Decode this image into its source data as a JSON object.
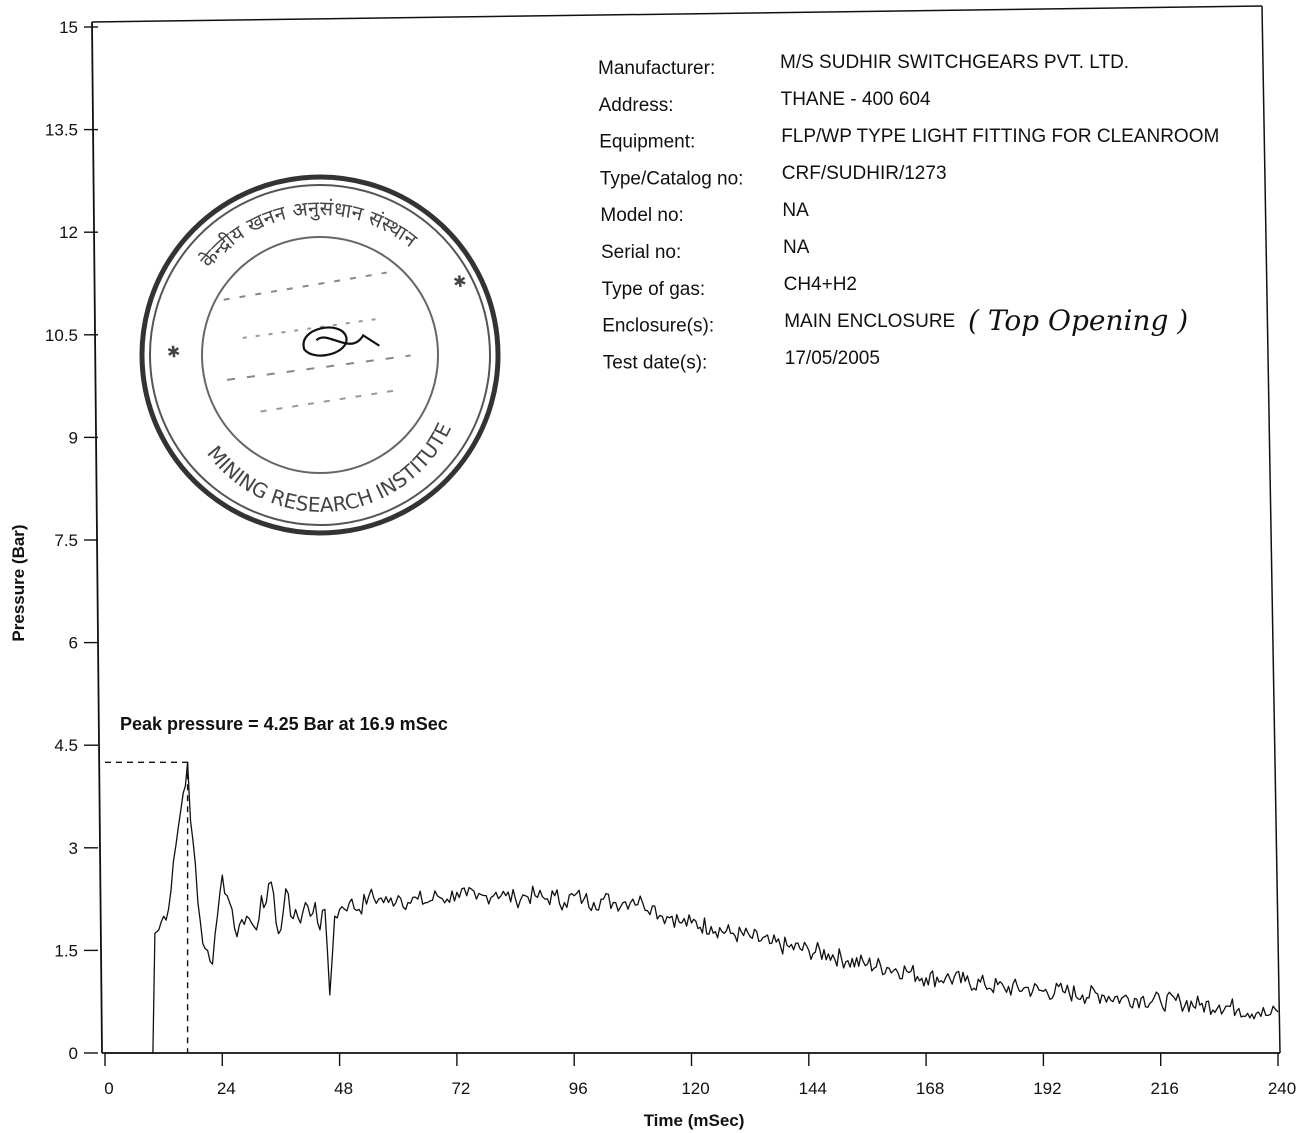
{
  "chart_data": {
    "type": "line",
    "xlabel": "Time (mSec)",
    "ylabel": "Pressure (Bar)",
    "xlim": [
      0,
      240
    ],
    "ylim": [
      0,
      15
    ],
    "x_ticks": [
      0,
      24,
      48,
      72,
      96,
      120,
      144,
      168,
      192,
      216,
      240
    ],
    "y_ticks": [
      0,
      1.5,
      3,
      4.5,
      6,
      7.5,
      9,
      10.5,
      12,
      13.5,
      15
    ],
    "grid": false,
    "series": [
      {
        "x": [
          0,
          9,
          9.8,
          10.2,
          11,
          12,
          13,
          14,
          15,
          16,
          16.9,
          17.5,
          18,
          19,
          20,
          21,
          22,
          23,
          24,
          25,
          26,
          27,
          28,
          29,
          30,
          31,
          32,
          33,
          34,
          35,
          36,
          37,
          38,
          39,
          40,
          41,
          42,
          43,
          44,
          45,
          45.5,
          46,
          47,
          48,
          50,
          52,
          54,
          56,
          58,
          60,
          62,
          64,
          66,
          68,
          70,
          72,
          74,
          76,
          78,
          80,
          82,
          84,
          86,
          88,
          90,
          92,
          94,
          96,
          98,
          100,
          102,
          104,
          106,
          108,
          110,
          112,
          114,
          116,
          118,
          120,
          124,
          128,
          132,
          136,
          140,
          144,
          148,
          152,
          156,
          160,
          164,
          168,
          172,
          176,
          180,
          184,
          188,
          192,
          196,
          200,
          204,
          208,
          212,
          216,
          220,
          224,
          228,
          232,
          236,
          238,
          240
        ],
        "values": [
          0,
          0,
          0,
          1.75,
          1.8,
          2.0,
          2.1,
          2.8,
          3.3,
          3.8,
          4.25,
          3.4,
          3.1,
          2.2,
          1.6,
          1.5,
          1.3,
          2.0,
          2.6,
          2.3,
          2.1,
          1.7,
          1.95,
          2.0,
          1.9,
          1.8,
          2.3,
          2.2,
          2.5,
          1.9,
          1.8,
          2.4,
          2.0,
          2.1,
          1.9,
          2.2,
          2.0,
          2.2,
          1.8,
          2.1,
          1.5,
          0.85,
          2.0,
          2.1,
          2.2,
          2.1,
          2.3,
          2.25,
          2.2,
          2.3,
          2.2,
          2.25,
          2.2,
          2.3,
          2.25,
          2.35,
          2.3,
          2.25,
          2.3,
          2.35,
          2.3,
          2.25,
          2.3,
          2.3,
          2.25,
          2.3,
          2.2,
          2.3,
          2.25,
          2.2,
          2.25,
          2.2,
          2.2,
          2.25,
          2.2,
          2.15,
          2.0,
          2.0,
          1.9,
          1.9,
          1.85,
          1.75,
          1.7,
          1.6,
          1.55,
          1.5,
          1.45,
          1.35,
          1.3,
          1.25,
          1.2,
          1.1,
          1.1,
          1.05,
          1.0,
          0.95,
          0.95,
          0.9,
          0.9,
          0.85,
          0.85,
          0.8,
          0.8,
          0.75,
          0.75,
          0.7,
          0.7,
          0.65,
          0.6,
          0.55,
          0.6
        ]
      }
    ],
    "annotations": [
      {
        "text": "Peak pressure =  4.25 Bar at 16.9 mSec",
        "x": 16.9,
        "y": 4.25
      }
    ]
  },
  "info": [
    {
      "label": "Manufacturer:",
      "value": "M/S SUDHIR SWITCHGEARS PVT. LTD."
    },
    {
      "label": "Address:",
      "value": "THANE - 400 604"
    },
    {
      "label": "Equipment:",
      "value": "FLP/WP TYPE LIGHT FITTING FOR CLEANROOM"
    },
    {
      "label": "Type/Catalog no:",
      "value": "CRF/SUDHIR/1273"
    },
    {
      "label": "Model no:",
      "value": "NA"
    },
    {
      "label": "Serial no:",
      "value": "NA"
    },
    {
      "label": "Type of gas:",
      "value": "CH4+H2"
    },
    {
      "label": "Enclosure(s):",
      "value": "MAIN ENCLOSURE"
    },
    {
      "label": "Test date(s):",
      "value": "17/05/2005"
    }
  ],
  "handwritten_note": "( Top Opening )",
  "stamp": {
    "upper_text": "केन्द्रीय खनन अनुसंधान संस्थान",
    "lower_text": "MINING RESEARCH INSTITUTE"
  },
  "colors": {
    "line": "#111111",
    "axis": "#111111",
    "stamp": "#333333",
    "background": "#ffffff"
  }
}
